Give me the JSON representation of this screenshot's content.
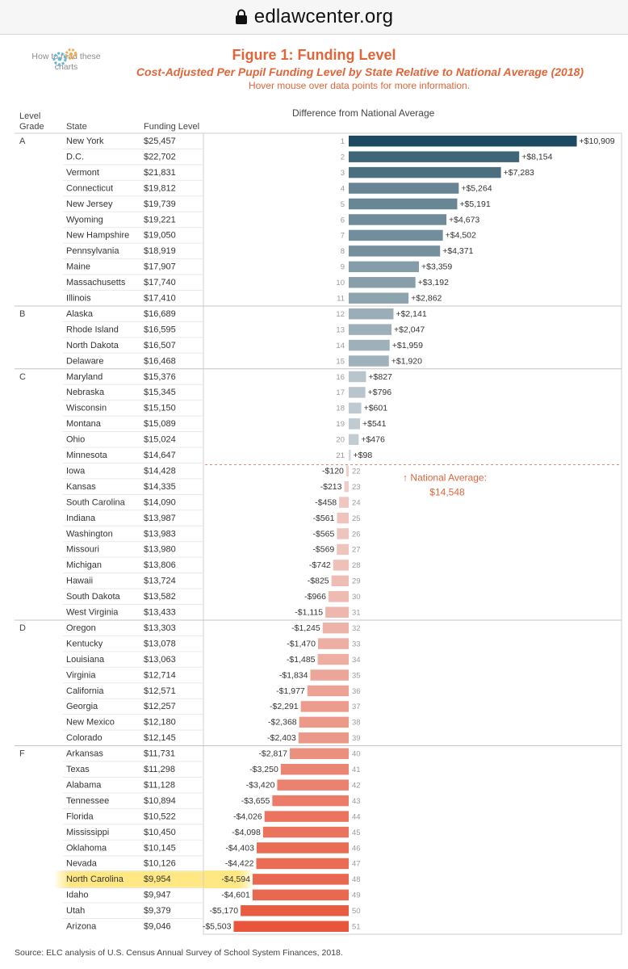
{
  "browser": {
    "url": "edlawcenter.org"
  },
  "help": {
    "label": "How to read these charts",
    "icon": "gears-icon"
  },
  "figure": {
    "title": "Figure 1: Funding Level",
    "subtitle": "Cost-Adjusted Per Pupil Funding Level by State Relative to National Average (2018)",
    "hover_note": "Hover mouse over data points for more information."
  },
  "headers": {
    "grade_line1": "Level",
    "grade_line2": "Grade",
    "state": "State",
    "funding": "Funding Level",
    "diff": "Difference from National Average"
  },
  "national_average": {
    "label": "↑ National Average:",
    "value": "$14,548"
  },
  "source": "Source: ELC analysis of U.S. Census Annual Survey of School System Finances, 2018.",
  "highlighted_state": "North Carolina",
  "colors": {
    "title": "#e0663a",
    "positive_dark": "#1d4a60",
    "negative_dark": "#e8553a"
  },
  "chart_data": {
    "type": "bar",
    "orientation": "horizontal",
    "title": "Figure 1: Funding Level",
    "xlabel": "Difference from National Average",
    "national_average": 14548,
    "grades": [
      {
        "grade": "A",
        "start_rank": 1
      },
      {
        "grade": "B",
        "start_rank": 12
      },
      {
        "grade": "C",
        "start_rank": 16
      },
      {
        "grade": "D",
        "start_rank": 32
      },
      {
        "grade": "F",
        "start_rank": 40
      }
    ],
    "rows": [
      {
        "rank": 1,
        "state": "New York",
        "funding": "$25,457",
        "diff": 10909,
        "diff_label": "+$10,909"
      },
      {
        "rank": 2,
        "state": "D.C.",
        "funding": "$22,702",
        "diff": 8154,
        "diff_label": "+$8,154"
      },
      {
        "rank": 3,
        "state": "Vermont",
        "funding": "$21,831",
        "diff": 7283,
        "diff_label": "+$7,283"
      },
      {
        "rank": 4,
        "state": "Connecticut",
        "funding": "$19,812",
        "diff": 5264,
        "diff_label": "+$5,264"
      },
      {
        "rank": 5,
        "state": "New Jersey",
        "funding": "$19,739",
        "diff": 5191,
        "diff_label": "+$5,191"
      },
      {
        "rank": 6,
        "state": "Wyoming",
        "funding": "$19,221",
        "diff": 4673,
        "diff_label": "+$4,673"
      },
      {
        "rank": 7,
        "state": "New Hampshire",
        "funding": "$19,050",
        "diff": 4502,
        "diff_label": "+$4,502"
      },
      {
        "rank": 8,
        "state": "Pennsylvania",
        "funding": "$18,919",
        "diff": 4371,
        "diff_label": "+$4,371"
      },
      {
        "rank": 9,
        "state": "Maine",
        "funding": "$17,907",
        "diff": 3359,
        "diff_label": "+$3,359"
      },
      {
        "rank": 10,
        "state": "Massachusetts",
        "funding": "$17,740",
        "diff": 3192,
        "diff_label": "+$3,192"
      },
      {
        "rank": 11,
        "state": "Illinois",
        "funding": "$17,410",
        "diff": 2862,
        "diff_label": "+$2,862"
      },
      {
        "rank": 12,
        "state": "Alaska",
        "funding": "$16,689",
        "diff": 2141,
        "diff_label": "+$2,141"
      },
      {
        "rank": 13,
        "state": "Rhode Island",
        "funding": "$16,595",
        "diff": 2047,
        "diff_label": "+$2,047"
      },
      {
        "rank": 14,
        "state": "North Dakota",
        "funding": "$16,507",
        "diff": 1959,
        "diff_label": "+$1,959"
      },
      {
        "rank": 15,
        "state": "Delaware",
        "funding": "$16,468",
        "diff": 1920,
        "diff_label": "+$1,920"
      },
      {
        "rank": 16,
        "state": "Maryland",
        "funding": "$15,376",
        "diff": 827,
        "diff_label": "+$827"
      },
      {
        "rank": 17,
        "state": "Nebraska",
        "funding": "$15,345",
        "diff": 796,
        "diff_label": "+$796"
      },
      {
        "rank": 18,
        "state": "Wisconsin",
        "funding": "$15,150",
        "diff": 601,
        "diff_label": "+$601"
      },
      {
        "rank": 19,
        "state": "Montana",
        "funding": "$15,089",
        "diff": 541,
        "diff_label": "+$541"
      },
      {
        "rank": 20,
        "state": "Ohio",
        "funding": "$15,024",
        "diff": 476,
        "diff_label": "+$476"
      },
      {
        "rank": 21,
        "state": "Minnesota",
        "funding": "$14,647",
        "diff": 98,
        "diff_label": "+$98"
      },
      {
        "rank": 22,
        "state": "Iowa",
        "funding": "$14,428",
        "diff": -120,
        "diff_label": "-$120"
      },
      {
        "rank": 23,
        "state": "Kansas",
        "funding": "$14,335",
        "diff": -213,
        "diff_label": "-$213"
      },
      {
        "rank": 24,
        "state": "South Carolina",
        "funding": "$14,090",
        "diff": -458,
        "diff_label": "-$458"
      },
      {
        "rank": 25,
        "state": "Indiana",
        "funding": "$13,987",
        "diff": -561,
        "diff_label": "-$561"
      },
      {
        "rank": 26,
        "state": "Washington",
        "funding": "$13,983",
        "diff": -565,
        "diff_label": "-$565"
      },
      {
        "rank": 27,
        "state": "Missouri",
        "funding": "$13,980",
        "diff": -569,
        "diff_label": "-$569"
      },
      {
        "rank": 28,
        "state": "Michigan",
        "funding": "$13,806",
        "diff": -742,
        "diff_label": "-$742"
      },
      {
        "rank": 29,
        "state": "Hawaii",
        "funding": "$13,724",
        "diff": -825,
        "diff_label": "-$825"
      },
      {
        "rank": 30,
        "state": "South Dakota",
        "funding": "$13,582",
        "diff": -966,
        "diff_label": "-$966"
      },
      {
        "rank": 31,
        "state": "West Virginia",
        "funding": "$13,433",
        "diff": -1115,
        "diff_label": "-$1,115"
      },
      {
        "rank": 32,
        "state": "Oregon",
        "funding": "$13,303",
        "diff": -1245,
        "diff_label": "-$1,245"
      },
      {
        "rank": 33,
        "state": "Kentucky",
        "funding": "$13,078",
        "diff": -1470,
        "diff_label": "-$1,470"
      },
      {
        "rank": 34,
        "state": "Louisiana",
        "funding": "$13,063",
        "diff": -1485,
        "diff_label": "-$1,485"
      },
      {
        "rank": 35,
        "state": "Virginia",
        "funding": "$12,714",
        "diff": -1834,
        "diff_label": "-$1,834"
      },
      {
        "rank": 36,
        "state": "California",
        "funding": "$12,571",
        "diff": -1977,
        "diff_label": "-$1,977"
      },
      {
        "rank": 37,
        "state": "Georgia",
        "funding": "$12,257",
        "diff": -2291,
        "diff_label": "-$2,291"
      },
      {
        "rank": 38,
        "state": "New Mexico",
        "funding": "$12,180",
        "diff": -2368,
        "diff_label": "-$2,368"
      },
      {
        "rank": 39,
        "state": "Colorado",
        "funding": "$12,145",
        "diff": -2403,
        "diff_label": "-$2,403"
      },
      {
        "rank": 40,
        "state": "Arkansas",
        "funding": "$11,731",
        "diff": -2817,
        "diff_label": "-$2,817"
      },
      {
        "rank": 41,
        "state": "Texas",
        "funding": "$11,298",
        "diff": -3250,
        "diff_label": "-$3,250"
      },
      {
        "rank": 42,
        "state": "Alabama",
        "funding": "$11,128",
        "diff": -3420,
        "diff_label": "-$3,420"
      },
      {
        "rank": 43,
        "state": "Tennessee",
        "funding": "$10,894",
        "diff": -3655,
        "diff_label": "-$3,655"
      },
      {
        "rank": 44,
        "state": "Florida",
        "funding": "$10,522",
        "diff": -4026,
        "diff_label": "-$4,026"
      },
      {
        "rank": 45,
        "state": "Mississippi",
        "funding": "$10,450",
        "diff": -4098,
        "diff_label": "-$4,098"
      },
      {
        "rank": 46,
        "state": "Oklahoma",
        "funding": "$10,145",
        "diff": -4403,
        "diff_label": "-$4,403"
      },
      {
        "rank": 47,
        "state": "Nevada",
        "funding": "$10,126",
        "diff": -4422,
        "diff_label": "-$4,422"
      },
      {
        "rank": 48,
        "state": "North Carolina",
        "funding": "$9,954",
        "diff": -4594,
        "diff_label": "-$4,594"
      },
      {
        "rank": 49,
        "state": "Idaho",
        "funding": "$9,947",
        "diff": -4601,
        "diff_label": "-$4,601"
      },
      {
        "rank": 50,
        "state": "Utah",
        "funding": "$9,379",
        "diff": -5170,
        "diff_label": "-$5,170"
      },
      {
        "rank": 51,
        "state": "Arizona",
        "funding": "$9,046",
        "diff": -5503,
        "diff_label": "-$5,503"
      }
    ]
  }
}
